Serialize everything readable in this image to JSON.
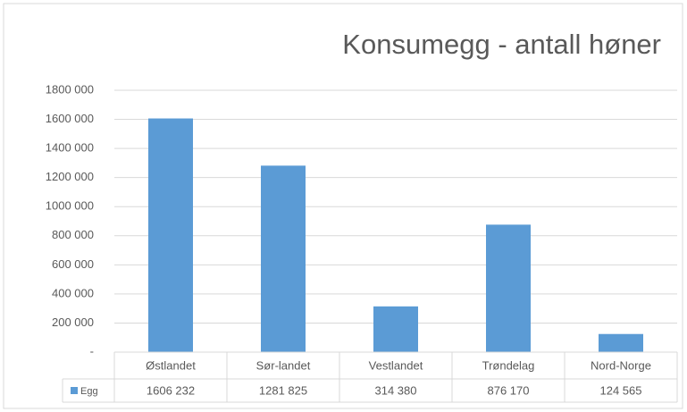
{
  "chart_data": {
    "type": "bar",
    "title": "Konsumegg - antall høner",
    "categories": [
      "Østlandet",
      "Sør-landet",
      "Vestlandet",
      "Trøndelag",
      "Nord-Norge"
    ],
    "series": [
      {
        "name": "Egg",
        "color": "#5b9bd5",
        "values": [
          1606232,
          1281825,
          314380,
          876170,
          124565
        ],
        "value_labels": [
          "1606 232",
          "1281 825",
          "314 380",
          "876 170",
          "124 565"
        ]
      }
    ],
    "ylim": [
      0,
      1800000
    ],
    "yticks": [
      {
        "value": 0,
        "label": "-"
      },
      {
        "value": 200000,
        "label": "200 000"
      },
      {
        "value": 400000,
        "label": "400 000"
      },
      {
        "value": 600000,
        "label": "600 000"
      },
      {
        "value": 800000,
        "label": "800 000"
      },
      {
        "value": 1000000,
        "label": "1000 000"
      },
      {
        "value": 1200000,
        "label": "1200 000"
      },
      {
        "value": 1400000,
        "label": "1400 000"
      },
      {
        "value": 1600000,
        "label": "1600 000"
      },
      {
        "value": 1800000,
        "label": "1800 000"
      }
    ],
    "grid": true
  }
}
